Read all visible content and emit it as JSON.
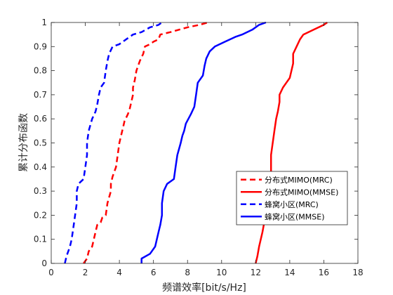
{
  "chart_data": {
    "type": "line",
    "title": "",
    "xlabel": "频谱效率[bit/s/Hz]",
    "ylabel": "累计分布函数",
    "xlim": [
      0,
      18
    ],
    "ylim": [
      0,
      1
    ],
    "xticks": [
      "0",
      "2",
      "4",
      "6",
      "8",
      "10",
      "12",
      "14",
      "16",
      "18"
    ],
    "yticks": [
      "0",
      "0.1",
      "0.2",
      "0.3",
      "0.4",
      "0.5",
      "0.6",
      "0.7",
      "0.8",
      "0.9",
      "1"
    ],
    "grid": false,
    "legend_position": "lower-right",
    "series": [
      {
        "name": "分布式MIMO(MRC)",
        "color": "#ff0000",
        "style": "dashed",
        "points": [
          [
            1.9,
            0
          ],
          [
            2.1,
            0.02
          ],
          [
            2.2,
            0.05
          ],
          [
            2.4,
            0.07
          ],
          [
            2.5,
            0.1
          ],
          [
            2.6,
            0.13
          ],
          [
            2.7,
            0.16
          ],
          [
            2.9,
            0.17
          ],
          [
            3.0,
            0.19
          ],
          [
            3.2,
            0.2
          ],
          [
            3.3,
            0.25
          ],
          [
            3.5,
            0.3
          ],
          [
            3.5,
            0.33
          ],
          [
            3.6,
            0.36
          ],
          [
            3.8,
            0.4
          ],
          [
            3.9,
            0.45
          ],
          [
            4.0,
            0.5
          ],
          [
            4.1,
            0.53
          ],
          [
            4.2,
            0.56
          ],
          [
            4.3,
            0.59
          ],
          [
            4.5,
            0.62
          ],
          [
            4.6,
            0.64
          ],
          [
            4.7,
            0.67
          ],
          [
            4.8,
            0.7
          ],
          [
            4.8,
            0.73
          ],
          [
            4.9,
            0.76
          ],
          [
            5.0,
            0.8
          ],
          [
            5.2,
            0.84
          ],
          [
            5.4,
            0.87
          ],
          [
            5.5,
            0.9
          ],
          [
            5.8,
            0.91
          ],
          [
            6.0,
            0.92
          ],
          [
            6.3,
            0.93
          ],
          [
            6.4,
            0.95
          ],
          [
            7.0,
            0.96
          ],
          [
            8.0,
            0.98
          ],
          [
            8.7,
            0.99
          ],
          [
            9.2,
            1.0
          ]
        ]
      },
      {
        "name": "分布式MIMO(MMSE)",
        "color": "#ff0000",
        "style": "solid",
        "points": [
          [
            12.0,
            0
          ],
          [
            12.1,
            0.03
          ],
          [
            12.2,
            0.07
          ],
          [
            12.3,
            0.1
          ],
          [
            12.4,
            0.13
          ],
          [
            12.5,
            0.17
          ],
          [
            12.6,
            0.2
          ],
          [
            12.7,
            0.25
          ],
          [
            12.8,
            0.3
          ],
          [
            12.9,
            0.35
          ],
          [
            12.9,
            0.4
          ],
          [
            12.9,
            0.45
          ],
          [
            13.0,
            0.5
          ],
          [
            13.1,
            0.55
          ],
          [
            13.2,
            0.6
          ],
          [
            13.3,
            0.63
          ],
          [
            13.4,
            0.67
          ],
          [
            13.4,
            0.7
          ],
          [
            13.6,
            0.73
          ],
          [
            13.8,
            0.75
          ],
          [
            14.0,
            0.77
          ],
          [
            14.1,
            0.8
          ],
          [
            14.2,
            0.83
          ],
          [
            14.2,
            0.87
          ],
          [
            14.4,
            0.9
          ],
          [
            14.6,
            0.93
          ],
          [
            14.8,
            0.95
          ],
          [
            15.4,
            0.97
          ],
          [
            16.0,
            0.99
          ],
          [
            16.2,
            1.0
          ]
        ]
      },
      {
        "name": "蜂窝小区(MRC)",
        "color": "#0000ff",
        "style": "dashed",
        "points": [
          [
            0.8,
            0
          ],
          [
            0.9,
            0.03
          ],
          [
            1.1,
            0.07
          ],
          [
            1.2,
            0.1
          ],
          [
            1.3,
            0.15
          ],
          [
            1.4,
            0.2
          ],
          [
            1.5,
            0.25
          ],
          [
            1.5,
            0.3
          ],
          [
            1.6,
            0.33
          ],
          [
            1.9,
            0.35
          ],
          [
            2.0,
            0.4
          ],
          [
            2.1,
            0.45
          ],
          [
            2.1,
            0.5
          ],
          [
            2.2,
            0.55
          ],
          [
            2.4,
            0.6
          ],
          [
            2.6,
            0.63
          ],
          [
            2.7,
            0.66
          ],
          [
            2.8,
            0.7
          ],
          [
            2.9,
            0.73
          ],
          [
            3.1,
            0.75
          ],
          [
            3.2,
            0.8
          ],
          [
            3.3,
            0.84
          ],
          [
            3.4,
            0.87
          ],
          [
            3.6,
            0.9
          ],
          [
            4.0,
            0.91
          ],
          [
            4.4,
            0.93
          ],
          [
            4.8,
            0.95
          ],
          [
            5.3,
            0.96
          ],
          [
            5.8,
            0.98
          ],
          [
            6.3,
            0.99
          ],
          [
            6.5,
            1.0
          ]
        ]
      },
      {
        "name": "蜂窝小区(MMSE)",
        "color": "#0000ff",
        "style": "solid",
        "points": [
          [
            5.3,
            0
          ],
          [
            5.3,
            0.02
          ],
          [
            5.8,
            0.04
          ],
          [
            6.1,
            0.07
          ],
          [
            6.2,
            0.1
          ],
          [
            6.3,
            0.13
          ],
          [
            6.4,
            0.16
          ],
          [
            6.5,
            0.2
          ],
          [
            6.5,
            0.25
          ],
          [
            6.6,
            0.3
          ],
          [
            6.8,
            0.33
          ],
          [
            7.2,
            0.35
          ],
          [
            7.3,
            0.4
          ],
          [
            7.4,
            0.45
          ],
          [
            7.6,
            0.5
          ],
          [
            7.7,
            0.53
          ],
          [
            7.8,
            0.55
          ],
          [
            7.9,
            0.58
          ],
          [
            8.2,
            0.62
          ],
          [
            8.4,
            0.65
          ],
          [
            8.5,
            0.7
          ],
          [
            8.6,
            0.75
          ],
          [
            8.9,
            0.78
          ],
          [
            9.0,
            0.82
          ],
          [
            9.1,
            0.85
          ],
          [
            9.3,
            0.88
          ],
          [
            9.6,
            0.9
          ],
          [
            10.2,
            0.92
          ],
          [
            10.8,
            0.94
          ],
          [
            11.2,
            0.95
          ],
          [
            11.8,
            0.97
          ],
          [
            12.2,
            0.99
          ],
          [
            12.6,
            1.0
          ]
        ]
      }
    ]
  }
}
